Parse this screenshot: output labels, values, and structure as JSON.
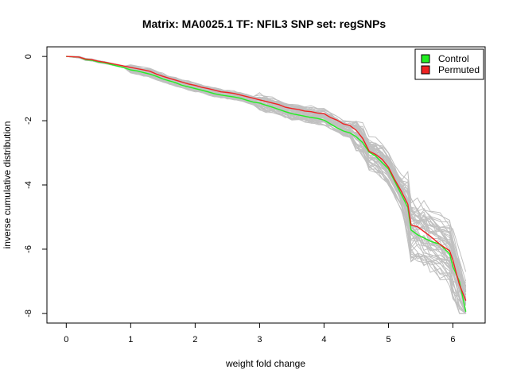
{
  "chart_data": {
    "type": "line",
    "title": "Matrix: MA0025.1 TF: NFIL3 SNP set: regSNPs",
    "xlabel": "weight fold change",
    "ylabel": "inverse cumulative distribution",
    "xlim": [
      -0.3,
      6.5
    ],
    "ylim": [
      -8.3,
      0.3
    ],
    "x_ticks": [
      "0",
      "1",
      "2",
      "3",
      "4",
      "5",
      "6"
    ],
    "y_ticks": [
      "0",
      "-2",
      "-4",
      "-6",
      "-8"
    ],
    "grid": false,
    "legend_position": "top-right",
    "legend": [
      {
        "label": "Control",
        "color": "#22ee22"
      },
      {
        "label": "Permuted",
        "color": "#ee2222"
      }
    ],
    "permuted_runs_color": "#c0c0c0",
    "series": [
      {
        "name": "Control",
        "color": "#22ee22",
        "x": [
          0.0,
          0.2,
          0.3,
          0.4,
          0.5,
          0.6,
          0.7,
          0.8,
          0.9,
          1.0,
          1.1,
          1.2,
          1.3,
          1.4,
          1.5,
          1.6,
          1.7,
          1.8,
          1.9,
          2.0,
          2.1,
          2.2,
          2.3,
          2.4,
          2.5,
          2.6,
          2.7,
          2.8,
          2.9,
          3.0,
          3.1,
          3.2,
          3.3,
          3.4,
          3.5,
          3.6,
          3.7,
          3.8,
          3.9,
          4.0,
          4.1,
          4.2,
          4.3,
          4.4,
          4.5,
          4.6,
          4.7,
          4.8,
          4.9,
          5.0,
          5.1,
          5.2,
          5.3,
          5.35,
          5.45,
          5.55,
          5.65,
          5.8,
          5.95,
          6.0,
          6.1,
          6.2
        ],
        "y": [
          0.0,
          -0.02,
          -0.1,
          -0.12,
          -0.17,
          -0.2,
          -0.25,
          -0.3,
          -0.35,
          -0.42,
          -0.45,
          -0.5,
          -0.55,
          -0.62,
          -0.7,
          -0.76,
          -0.82,
          -0.9,
          -0.95,
          -1.0,
          -1.05,
          -1.1,
          -1.16,
          -1.2,
          -1.23,
          -1.26,
          -1.3,
          -1.36,
          -1.42,
          -1.45,
          -1.52,
          -1.58,
          -1.65,
          -1.72,
          -1.78,
          -1.82,
          -1.86,
          -1.9,
          -1.93,
          -1.98,
          -2.1,
          -2.22,
          -2.32,
          -2.38,
          -2.5,
          -2.68,
          -2.98,
          -3.1,
          -3.3,
          -3.5,
          -3.9,
          -4.3,
          -4.7,
          -5.4,
          -5.55,
          -5.65,
          -5.75,
          -5.85,
          -6.15,
          -6.55,
          -7.0,
          -7.95
        ]
      },
      {
        "name": "Permuted",
        "color": "#ee2222",
        "x": [
          0.0,
          0.2,
          0.3,
          0.4,
          0.5,
          0.6,
          0.7,
          0.8,
          0.9,
          1.0,
          1.1,
          1.2,
          1.3,
          1.4,
          1.5,
          1.6,
          1.7,
          1.8,
          1.9,
          2.0,
          2.1,
          2.2,
          2.3,
          2.4,
          2.5,
          2.6,
          2.7,
          2.8,
          2.9,
          3.0,
          3.1,
          3.2,
          3.3,
          3.4,
          3.5,
          3.6,
          3.7,
          3.8,
          3.9,
          4.0,
          4.1,
          4.2,
          4.3,
          4.4,
          4.5,
          4.6,
          4.7,
          4.8,
          4.9,
          5.0,
          5.1,
          5.2,
          5.3,
          5.35,
          5.45,
          5.55,
          5.65,
          5.8,
          5.95,
          6.0,
          6.1,
          6.2
        ],
        "y": [
          0.0,
          -0.02,
          -0.08,
          -0.1,
          -0.15,
          -0.18,
          -0.22,
          -0.26,
          -0.3,
          -0.34,
          -0.38,
          -0.42,
          -0.46,
          -0.55,
          -0.62,
          -0.68,
          -0.74,
          -0.8,
          -0.86,
          -0.9,
          -0.96,
          -1.0,
          -1.05,
          -1.1,
          -1.12,
          -1.15,
          -1.2,
          -1.25,
          -1.3,
          -1.35,
          -1.4,
          -1.45,
          -1.5,
          -1.58,
          -1.62,
          -1.65,
          -1.7,
          -1.72,
          -1.76,
          -1.78,
          -1.9,
          -1.98,
          -2.1,
          -2.15,
          -2.3,
          -2.55,
          -2.95,
          -3.05,
          -3.2,
          -3.45,
          -3.85,
          -4.2,
          -4.6,
          -5.25,
          -5.3,
          -5.45,
          -5.6,
          -5.85,
          -6.05,
          -6.35,
          -7.1,
          -7.6
        ]
      }
    ]
  }
}
